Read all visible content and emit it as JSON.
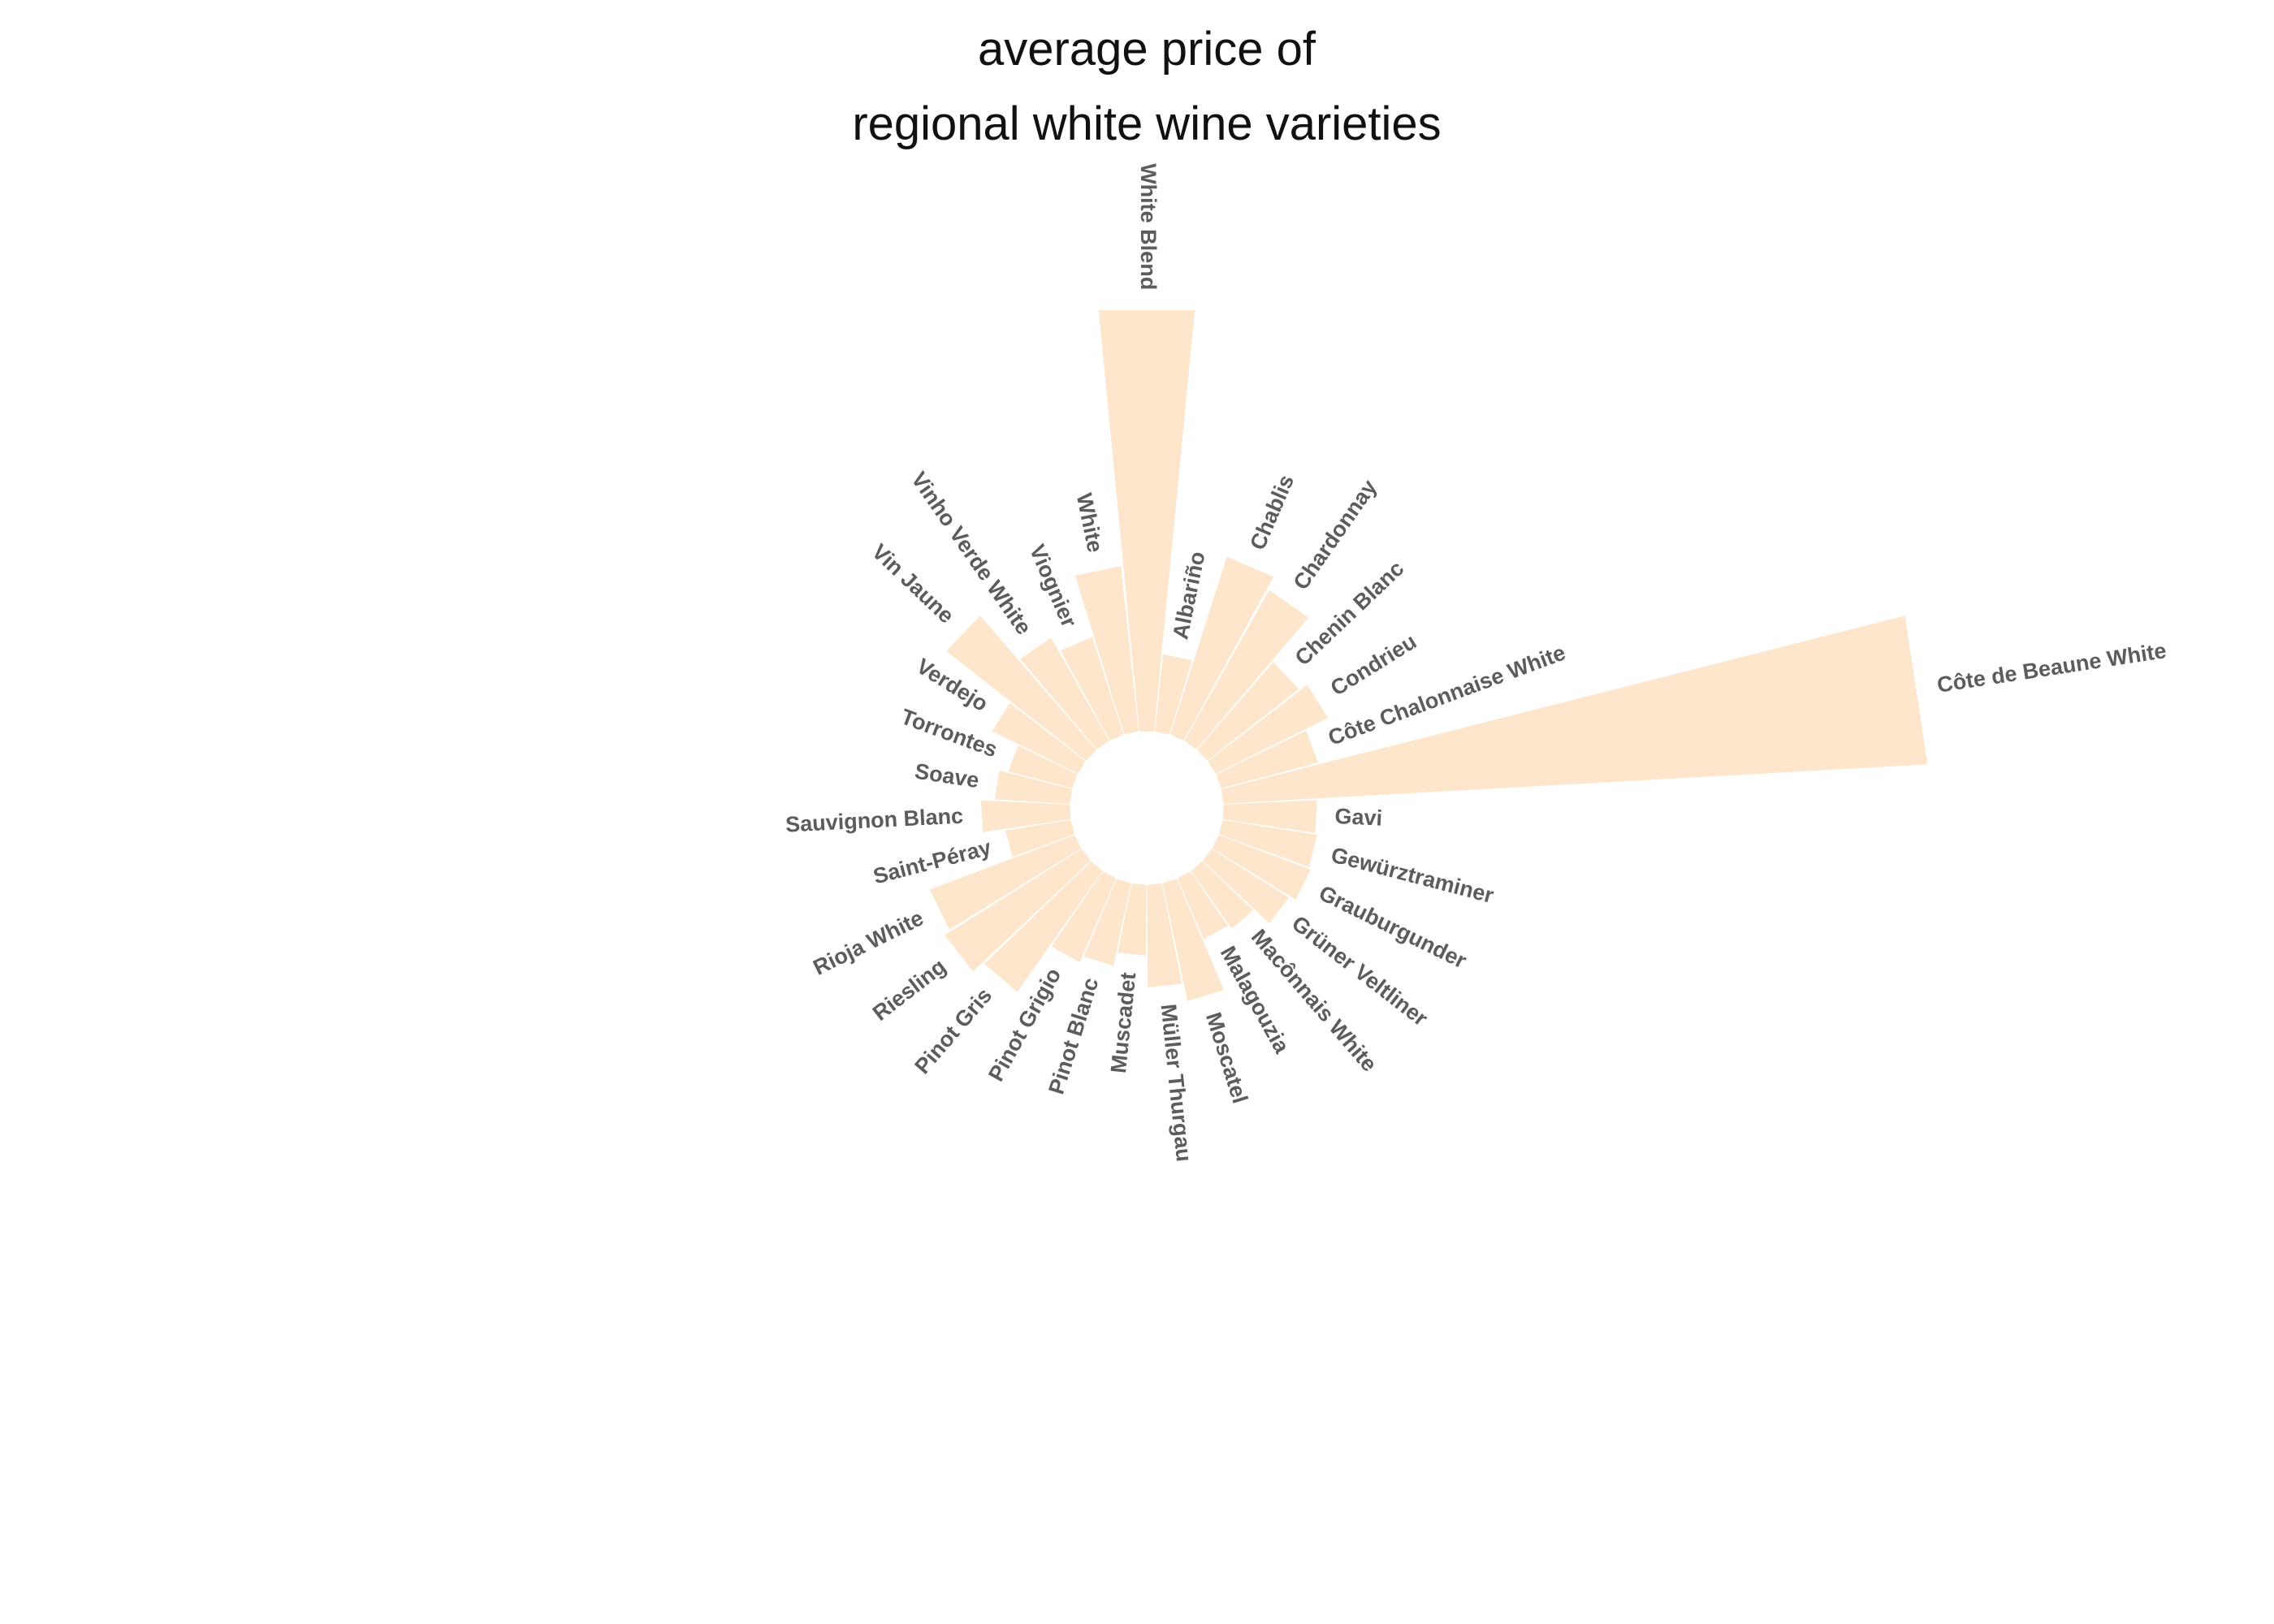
{
  "chart_data": {
    "type": "bar",
    "subtype": "circular",
    "title_lines": [
      "average price of",
      "regional white wine varieties"
    ],
    "color": "#fde6cc",
    "categories": [
      "Albariño",
      "Chablis",
      "Chardonnay",
      "Chenin Blanc",
      "Condrieu",
      "Côte Chalonnaise White",
      "Côte de Beaune White",
      "Gavi",
      "Gewürztraminer",
      "Grauburgunder",
      "Grüner Veltliner",
      "Macônnais White",
      "Malagouzia",
      "Moscatel",
      "Müller Thurgau",
      "Muscadet",
      "Pinot Blanc",
      "Pinot Grigio",
      "Pinot Gris",
      "Riesling",
      "Rioja White",
      "Saint-Péray",
      "Sauvignon Blanc",
      "Soave",
      "Torrontes",
      "Verdejo",
      "Vin Jaune",
      "Vinho Verde White",
      "Viognier",
      "White",
      "White Blend"
    ],
    "values": [
      34,
      82,
      76,
      51,
      55,
      44,
      310,
      41,
      42,
      43,
      40,
      31,
      29,
      53,
      45,
      31,
      37,
      40,
      65,
      71,
      68,
      29,
      39,
      33,
      29,
      42,
      78,
      52,
      45,
      73,
      186
    ],
    "grid": false,
    "legend": "none",
    "axes": "none"
  }
}
